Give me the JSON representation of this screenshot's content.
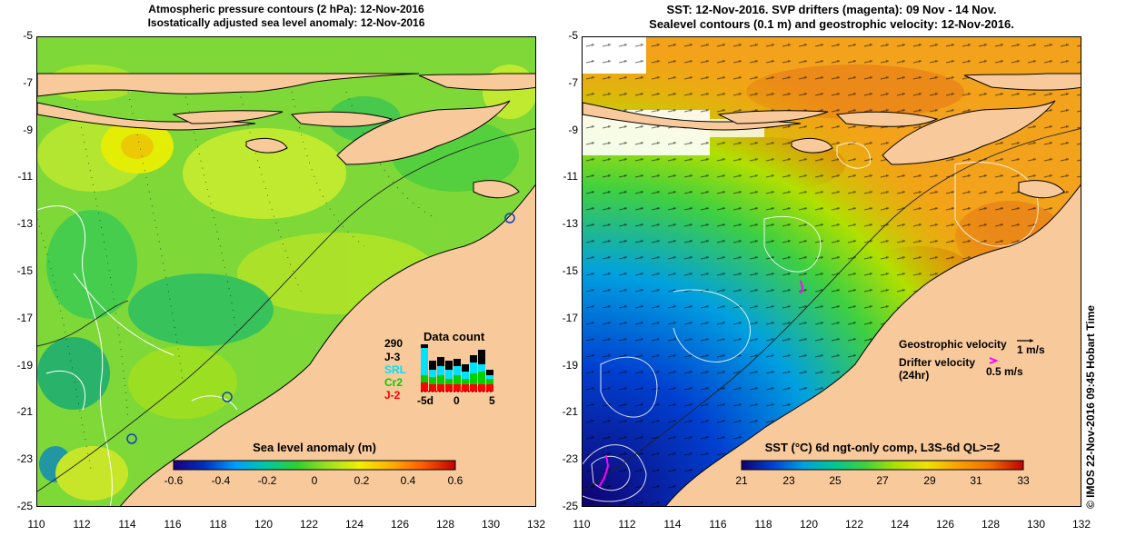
{
  "left_panel": {
    "title_line1": "Atmospheric pressure contours (2 hPa): 12-Nov-2016",
    "title_line2": "Isostatically adjusted sea level anomaly: 12-Nov-2016",
    "colorbar": {
      "title": "Sea level anomaly (m)",
      "ticks": [
        "-0.6",
        "-0.4",
        "-0.2",
        "0",
        "0.2",
        "0.4",
        "0.6"
      ]
    },
    "data_count": {
      "title": "Data count",
      "total": "290",
      "missions": [
        {
          "name": "J-3",
          "color": "#000000"
        },
        {
          "name": "SRL",
          "color": "#00e0ff"
        },
        {
          "name": "Cr2",
          "color": "#00d000"
        },
        {
          "name": "J-2",
          "color": "#ff0000"
        }
      ],
      "axis_labels": [
        "-5d",
        "0",
        "5"
      ]
    }
  },
  "right_panel": {
    "title_line1": "SST: 12-Nov-2016. SVP drifters (magenta): 09 Nov - 14 Nov.",
    "title_line2": "Sealevel contours (0.1 m) and geostrophic velocity: 12-Nov-2016.",
    "legend": {
      "geostrophic_label": "Geostrophic velocity",
      "geostrophic_scale": "1 m/s",
      "drifter_label_line1": "Drifter velocity",
      "drifter_label_line2": "(24hr)",
      "drifter_scale": "0.5 m/s"
    },
    "colorbar": {
      "title": "SST (°C) 6d ngt-only comp, L3S-6d QL>=2",
      "ticks": [
        "21",
        "23",
        "25",
        "27",
        "29",
        "31",
        "33"
      ]
    },
    "credit": "© IMOS 22-Nov-2016 09:45 Hobart Time"
  },
  "axes": {
    "lat_labels": [
      "-5",
      "-7",
      "-9",
      "-11",
      "-13",
      "-15",
      "-17",
      "-19",
      "-21",
      "-23",
      "-25"
    ],
    "lon_labels": [
      "110",
      "112",
      "114",
      "116",
      "118",
      "120",
      "122",
      "124",
      "126",
      "128",
      "130",
      "132"
    ]
  },
  "colors": {
    "land": "#f7c99b",
    "sla_ramp": [
      "#1a0080",
      "#0030c0",
      "#00a0ff",
      "#00c8a0",
      "#30d030",
      "#a0e020",
      "#f0f000",
      "#ffb000",
      "#ff6000",
      "#c00000"
    ],
    "sst_ramp": [
      "#100070",
      "#0040d0",
      "#00a0e0",
      "#00c890",
      "#40d040",
      "#b0e000",
      "#f0e000",
      "#f8a000",
      "#f07000",
      "#c00000"
    ],
    "magenta": "#ff00ff"
  }
}
